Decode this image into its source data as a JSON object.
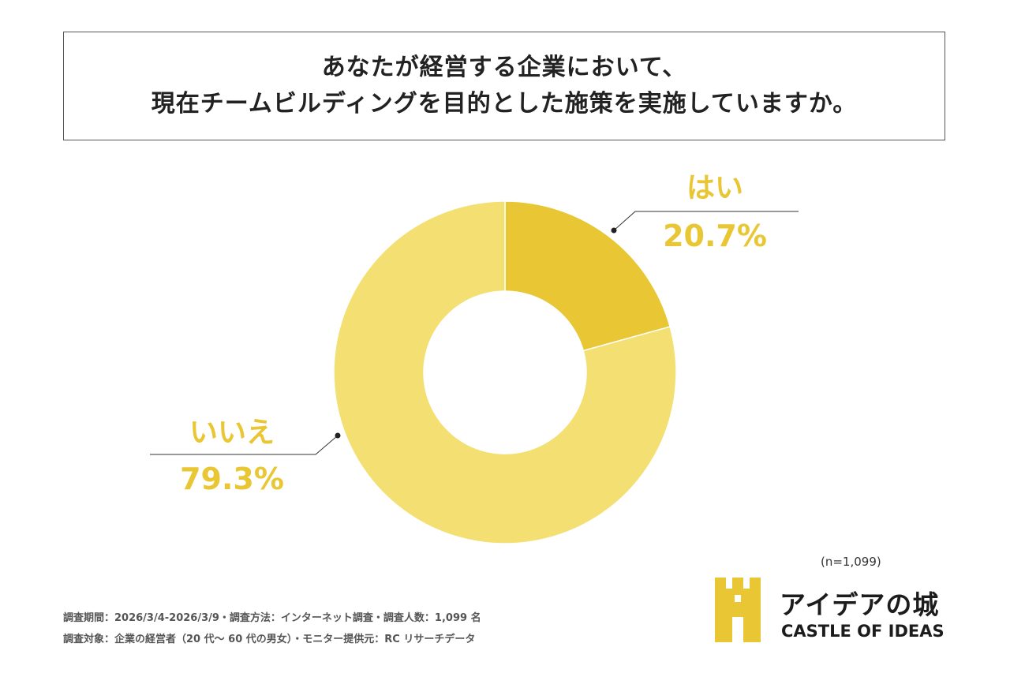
{
  "title": {
    "line1": "あなたが経営する企業において、",
    "line2": "現在チームビルディングを目的とした施策を実施していますか。"
  },
  "chart_data": {
    "type": "pie",
    "subtype": "donut",
    "categories": [
      "はい",
      "いいえ"
    ],
    "values": [
      20.7,
      79.3
    ],
    "value_labels": [
      "20.7%",
      "79.3%"
    ],
    "unit": "%",
    "colors": [
      "#E9C633",
      "#F4DF73"
    ],
    "label_color": "#E9C633"
  },
  "sample_size": "(n=1,099)",
  "footnotes": {
    "line1": "調査期間：2026/3/4-2026/3/9・調査方法：インターネット調査・調査人数：1,099 名",
    "line2": "調査対象：企業の経営者（20 代～ 60 代の男女）・モニター提供元：RC リサーチデータ"
  },
  "logo": {
    "name": "アイデアの城",
    "subtitle": "CASTLE OF IDEAS",
    "color": "#E9C633"
  }
}
